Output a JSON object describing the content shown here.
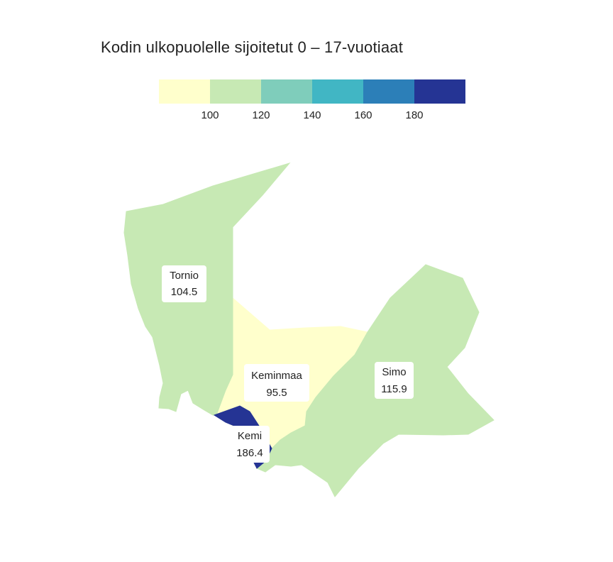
{
  "title": "Kodin ulkopuolelle sijoitetut 0 – 17-vuotiaat",
  "legend": {
    "colors": [
      "#ffffcc",
      "#c7e9b4",
      "#7fcdbb",
      "#41b6c4",
      "#2c7fb8",
      "#253494"
    ],
    "ticks": [
      "100",
      "120",
      "140",
      "160",
      "180"
    ]
  },
  "regions": [
    {
      "name": "Tornio",
      "value": "104.5",
      "color": "#c7e9b4"
    },
    {
      "name": "Keminmaa",
      "value": "95.5",
      "color": "#ffffcc"
    },
    {
      "name": "Simo",
      "value": "115.9",
      "color": "#c7e9b4"
    },
    {
      "name": "Kemi",
      "value": "186.4",
      "color": "#253494"
    }
  ]
}
